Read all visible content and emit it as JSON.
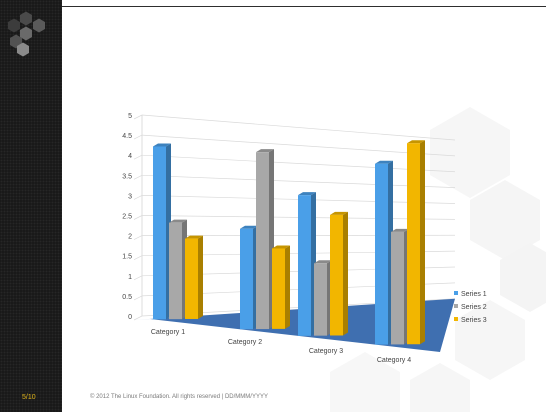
{
  "slide": {
    "number_label": "5/10",
    "footer": "© 2012 The Linux Foundation. All rights reserved | DD/MMM/YYYY"
  },
  "chart_data": {
    "type": "bar",
    "categories": [
      "Category 1",
      "Category 2",
      "Category 3",
      "Category 4"
    ],
    "series": [
      {
        "name": "Series 1",
        "values": [
          4.3,
          2.5,
          3.5,
          4.5
        ],
        "color": "#4a9fe8"
      },
      {
        "name": "Series 2",
        "values": [
          2.4,
          4.4,
          1.8,
          2.8
        ],
        "color": "#a8a8a8"
      },
      {
        "name": "Series 3",
        "values": [
          2.0,
          2.0,
          3.0,
          5.0
        ],
        "color": "#f2b600"
      }
    ],
    "yticks": [
      "0",
      "0.5",
      "1",
      "1.5",
      "2",
      "2.5",
      "3",
      "3.5",
      "4",
      "4.5",
      "5"
    ],
    "ylim": [
      0,
      5
    ],
    "legend_position": "right",
    "grid": true,
    "floor_color": "#3f6fb0"
  }
}
